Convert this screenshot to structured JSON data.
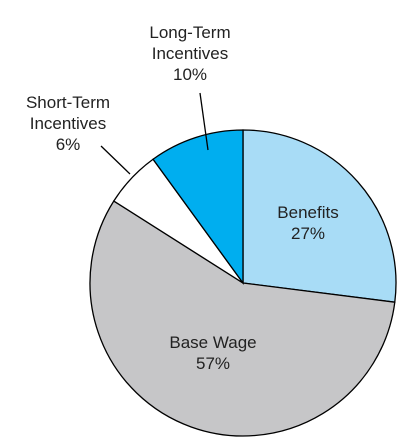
{
  "chart_data": {
    "type": "pie",
    "categories": [
      "Benefits",
      "Base Wage",
      "Short-Term Incentives",
      "Long-Term Incentives"
    ],
    "values": [
      27,
      57,
      6,
      10
    ],
    "value_labels": [
      "27%",
      "57%",
      "6%",
      "10%"
    ],
    "colors": [
      "#a8dcf6",
      "#c6c6c8",
      "#ffffff",
      "#00aeef"
    ]
  }
}
